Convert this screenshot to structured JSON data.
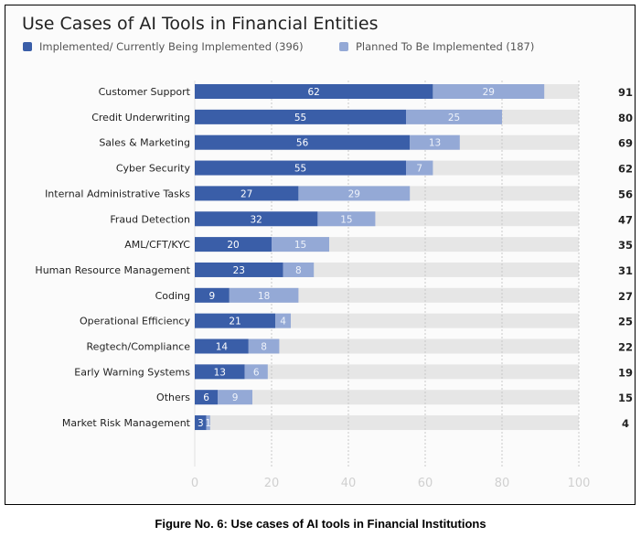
{
  "chart_data": {
    "type": "bar",
    "orientation": "horizontal",
    "stacked": true,
    "title": "Use Cases of AI Tools in Financial Entities",
    "categories": [
      "Customer Support",
      "Credit Underwriting",
      "Sales & Marketing",
      "Cyber Security",
      "Internal Administrative Tasks",
      "Fraud Detection",
      "AML/CFT/KYC",
      "Human Resource Management",
      "Coding",
      "Operational Efficiency",
      "Regtech/Compliance",
      "Early Warning Systems",
      "Others",
      "Market Risk Management"
    ],
    "series": [
      {
        "name": "Implemented/ Currently Being Implemented",
        "legend_label": "Implemented/ Currently Being Implemented  (396)",
        "color": "#3a5ea8",
        "values": [
          62,
          55,
          56,
          55,
          27,
          32,
          20,
          23,
          9,
          21,
          14,
          13,
          6,
          3
        ]
      },
      {
        "name": "Planned To Be Implemented",
        "legend_label": "Planned To Be Implemented (187)",
        "color": "#94a9d6",
        "values": [
          29,
          25,
          13,
          7,
          29,
          15,
          15,
          8,
          18,
          4,
          8,
          6,
          9,
          1
        ]
      }
    ],
    "totals": [
      91,
      80,
      69,
      62,
      56,
      47,
      35,
      31,
      27,
      25,
      22,
      19,
      15,
      4
    ],
    "xlim": [
      0,
      100
    ],
    "xticks": [
      "0",
      "20",
      "40",
      "60",
      "80",
      "100"
    ],
    "grid": "vertical dashed",
    "legend": "top-left",
    "background_bar_color": "#e6e6e6"
  },
  "caption": "Figure No. 6: Use cases of AI tools in Financial Institutions"
}
